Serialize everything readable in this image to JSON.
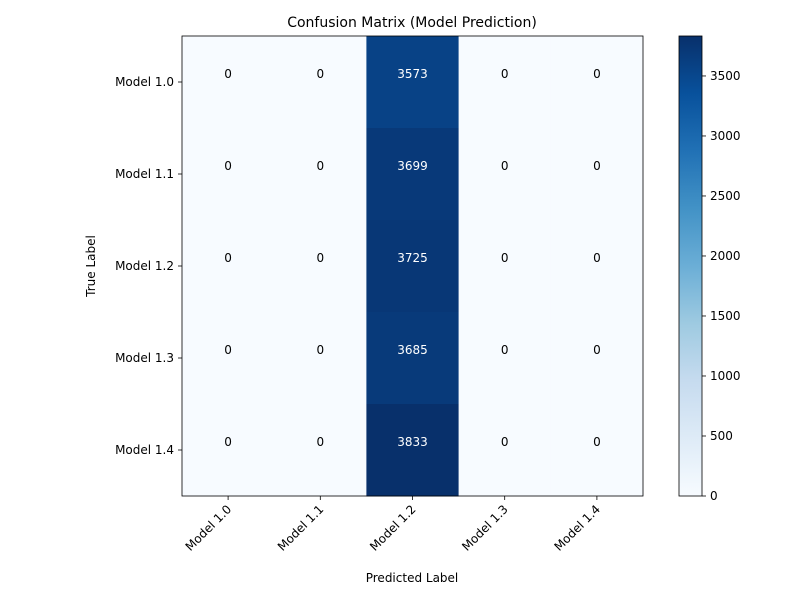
{
  "chart_data": {
    "type": "heatmap",
    "title": "Confusion Matrix (Model Prediction)",
    "xlabel": "Predicted Label",
    "ylabel": "True Label",
    "x_categories": [
      "Model 1.0",
      "Model 1.1",
      "Model 1.2",
      "Model 1.3",
      "Model 1.4"
    ],
    "y_categories": [
      "Model 1.0",
      "Model 1.1",
      "Model 1.2",
      "Model 1.3",
      "Model 1.4"
    ],
    "values": [
      [
        0,
        0,
        3573,
        0,
        0
      ],
      [
        0,
        0,
        3699,
        0,
        0
      ],
      [
        0,
        0,
        3725,
        0,
        0
      ],
      [
        0,
        0,
        3685,
        0,
        0
      ],
      [
        0,
        0,
        3833,
        0,
        0
      ]
    ],
    "colormap": "Blues",
    "color_range": [
      0,
      3833
    ],
    "colorbar_ticks": [
      0,
      500,
      1000,
      1500,
      2000,
      2500,
      3000,
      3500
    ],
    "grid": false
  }
}
